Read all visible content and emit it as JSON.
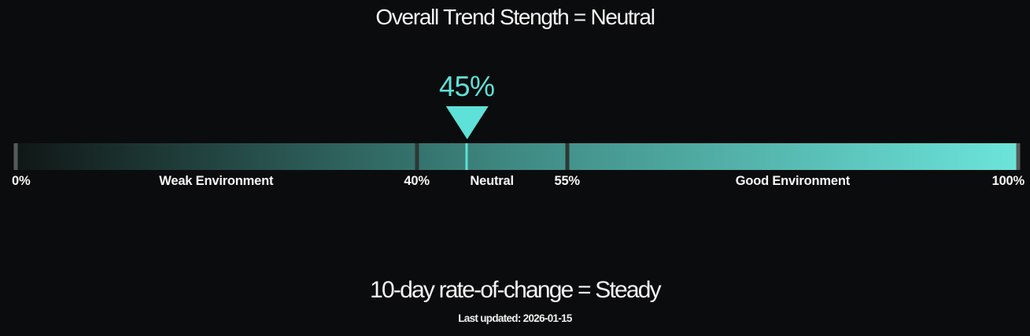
{
  "chart_data": {
    "type": "gauge-bar",
    "title": "Overall Trend Stength = Neutral",
    "status": "Neutral",
    "value": 45,
    "value_label": "45%",
    "axis_range": [
      0,
      100
    ],
    "boundaries": [
      {
        "value": 0,
        "label": "0%",
        "tick": "end"
      },
      {
        "value": 40,
        "label": "40%",
        "tick": "inner"
      },
      {
        "value": 55,
        "label": "55%",
        "tick": "inner"
      },
      {
        "value": 100,
        "label": "100%",
        "tick": "end"
      }
    ],
    "regions": [
      {
        "start": 0,
        "end": 40,
        "label": "Weak Environment"
      },
      {
        "start": 40,
        "end": 55,
        "label": "Neutral"
      },
      {
        "start": 55,
        "end": 100,
        "label": "Good Environment"
      }
    ],
    "subtitle": "10-day rate-of-change = Steady",
    "footer": "Last updated: 2026-01-15",
    "legend": "none",
    "grid": "off",
    "colors": {
      "background": "#0b0c0d",
      "text": "#f4f4f4",
      "accent": "#5ee1d8",
      "bar_gradient": [
        "#101716",
        "#3f8a83",
        "#6ce4da"
      ],
      "inner_tick": "#2e3736",
      "end_tick": "#565b5a"
    }
  }
}
